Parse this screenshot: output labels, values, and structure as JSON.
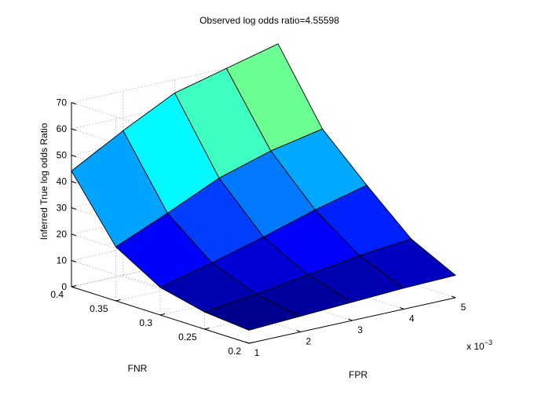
{
  "chart_data": {
    "type": "surface3d",
    "title": "Observed log odds ratio=4.55598",
    "xlabel": "FPR",
    "xscale_label": "x 10",
    "xscale_exp": "−3",
    "ylabel": "FNR",
    "zlabel": "Inferred True log odds Ratio",
    "x": [
      1,
      2,
      3,
      4,
      5
    ],
    "y": [
      0.2,
      0.25,
      0.3,
      0.35,
      0.4
    ],
    "x_tick_labels": [
      "1",
      "2",
      "3",
      "4",
      "5"
    ],
    "y_tick_labels": [
      "0.2",
      "0.25",
      "0.3",
      "0.35",
      "0.4"
    ],
    "z_ticks": [
      0,
      10,
      20,
      30,
      40,
      50,
      60,
      70
    ],
    "z_tick_labels": [
      "0",
      "10",
      "20",
      "30",
      "40",
      "50",
      "60",
      "70"
    ],
    "xlim": [
      1,
      5
    ],
    "ylim": [
      0.2,
      0.4
    ],
    "zlim": [
      0,
      70
    ],
    "grid": true,
    "colormap": "jet",
    "z": [
      [
        5.0,
        6.0,
        7.0,
        8.0,
        8.5
      ],
      [
        6.5,
        9.0,
        12.0,
        15.0,
        17.0
      ],
      [
        10.5,
        15.5,
        21.0,
        27.0,
        32.0
      ],
      [
        20.5,
        29.0,
        38.0,
        44.0,
        48.0
      ],
      [
        44.0,
        55.0,
        65.0,
        70.0,
        75.0
      ]
    ]
  }
}
